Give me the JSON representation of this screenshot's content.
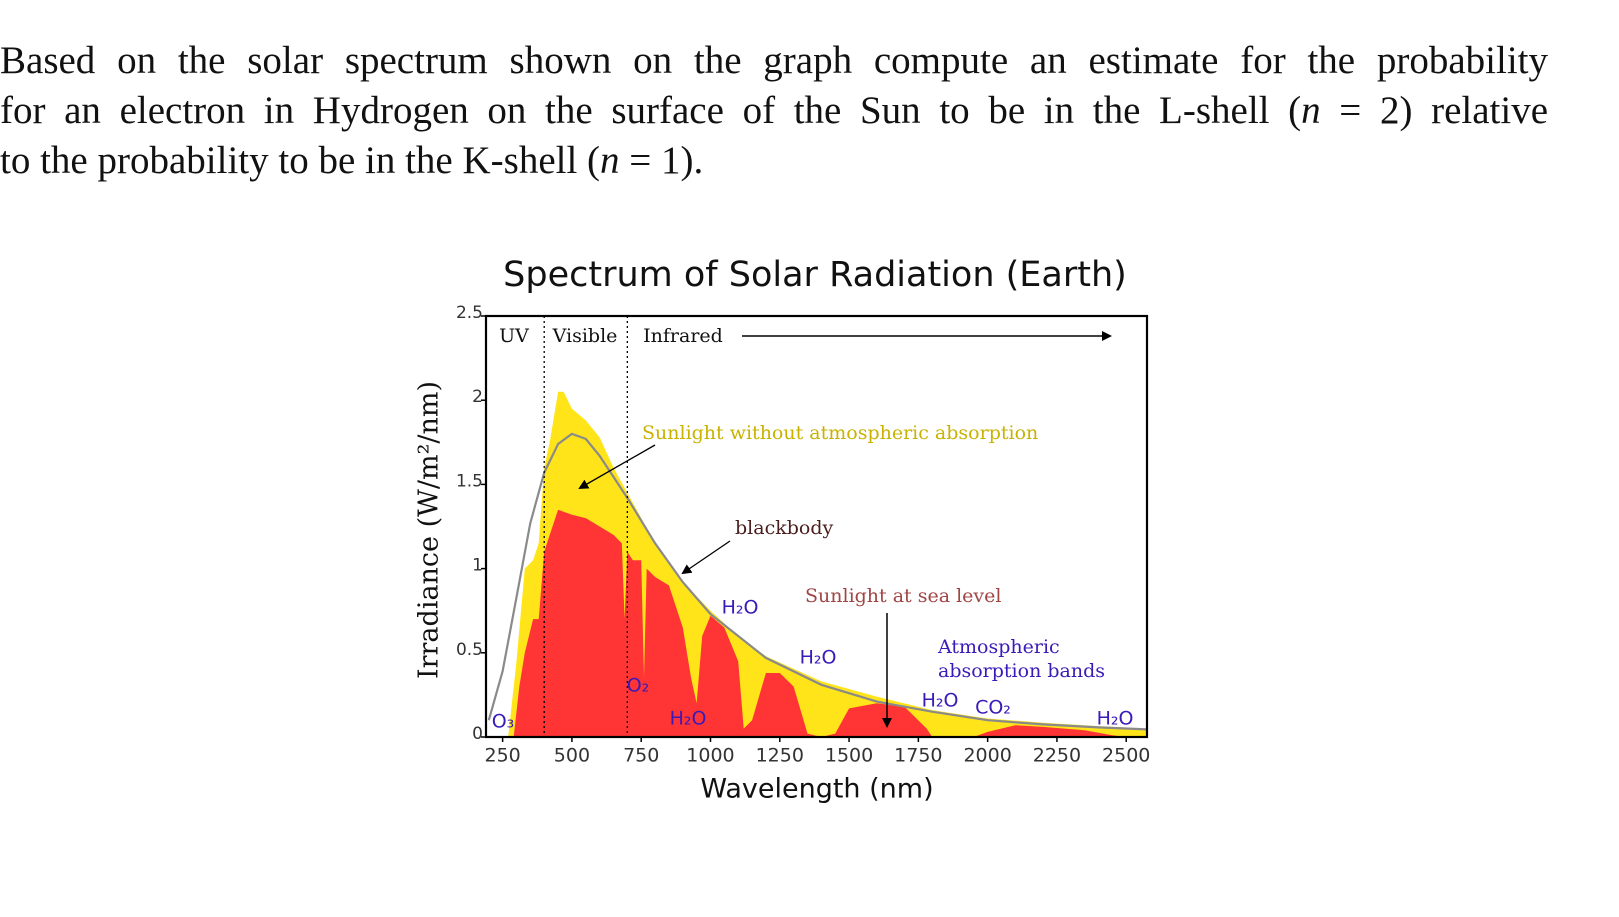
{
  "question": {
    "lines": [
      "Based on the solar spectrum shown on the graph compute an estimate for the probability",
      "for an electron in Hydrogen on the surface of the Sun to be in the L-shell (n = 2) relative",
      "to the probability to be in the K-shell (n = 1)."
    ]
  },
  "chart_data": {
    "type": "area",
    "title": "Spectrum of Solar Radiation (Earth)",
    "xlabel": "Wavelength (nm)",
    "ylabel": "Irradiance (W/m²/nm)",
    "xlim": [
      190,
      2575
    ],
    "ylim": [
      0,
      2.5
    ],
    "xticks": [
      250,
      500,
      750,
      1000,
      1250,
      1500,
      1750,
      2000,
      2250,
      2500
    ],
    "yticks": [
      0,
      0.5,
      1,
      1.5,
      2,
      2.5
    ],
    "regions": [
      "UV",
      "Visible",
      "Infrared"
    ],
    "region_bounds": [
      400,
      700
    ],
    "series": [
      {
        "name": "Sunlight without atmospheric absorption",
        "type": "area",
        "color": "#ffe41a",
        "label_color": "#c9b200",
        "x": [
          270,
          300,
          330,
          360,
          380,
          400,
          420,
          450,
          470,
          500,
          550,
          600,
          650,
          700,
          800,
          900,
          1000,
          1100,
          1200,
          1400,
          1600,
          1800,
          2000,
          2200,
          2400,
          2575
        ],
        "values": [
          0,
          0.45,
          1.0,
          1.05,
          1.15,
          1.6,
          1.75,
          2.05,
          2.05,
          1.95,
          1.88,
          1.78,
          1.6,
          1.45,
          1.15,
          0.92,
          0.75,
          0.6,
          0.48,
          0.33,
          0.24,
          0.16,
          0.11,
          0.085,
          0.065,
          0.05
        ]
      },
      {
        "name": "Sunlight at sea level",
        "type": "area",
        "color": "#ff3434",
        "label_color": "#a04545",
        "x": [
          290,
          310,
          330,
          360,
          380,
          400,
          430,
          450,
          500,
          550,
          600,
          650,
          680,
          690,
          700,
          720,
          750,
          760,
          770,
          800,
          850,
          900,
          930,
          950,
          970,
          1000,
          1050,
          1100,
          1120,
          1150,
          1200,
          1250,
          1300,
          1350,
          1400,
          1450,
          1500,
          1600,
          1700,
          1780,
          1800,
          1950,
          2000,
          2100,
          2200,
          2350,
          2450,
          2500
        ],
        "values": [
          0,
          0.3,
          0.5,
          0.7,
          0.7,
          1.1,
          1.25,
          1.35,
          1.32,
          1.3,
          1.25,
          1.2,
          1.15,
          0.7,
          1.1,
          1.05,
          1.05,
          0.35,
          1.0,
          0.95,
          0.9,
          0.65,
          0.35,
          0.2,
          0.6,
          0.72,
          0.65,
          0.45,
          0.05,
          0.1,
          0.38,
          0.38,
          0.3,
          0.02,
          0,
          0.02,
          0.17,
          0.2,
          0.18,
          0.05,
          0,
          0,
          0.03,
          0.07,
          0.06,
          0.04,
          0.01,
          0
        ]
      },
      {
        "name": "blackbody",
        "type": "line",
        "color": "#8a8a8a",
        "label_color": "#4a1c1c",
        "x": [
          200,
          250,
          300,
          350,
          400,
          450,
          500,
          550,
          600,
          700,
          800,
          900,
          1000,
          1200,
          1400,
          1600,
          1800,
          2000,
          2200,
          2400,
          2575
        ],
        "values": [
          0.1,
          0.39,
          0.83,
          1.27,
          1.57,
          1.74,
          1.8,
          1.77,
          1.67,
          1.42,
          1.15,
          0.92,
          0.73,
          0.47,
          0.31,
          0.21,
          0.15,
          0.1,
          0.075,
          0.057,
          0.045
        ]
      }
    ],
    "annotations": [
      "Atmospheric",
      "absorption bands"
    ],
    "absorption_labels": [
      "O₃",
      "O₂",
      "H₂O",
      "H₂O",
      "H₂O",
      "H₂O",
      "CO₂",
      "H₂O"
    ]
  }
}
